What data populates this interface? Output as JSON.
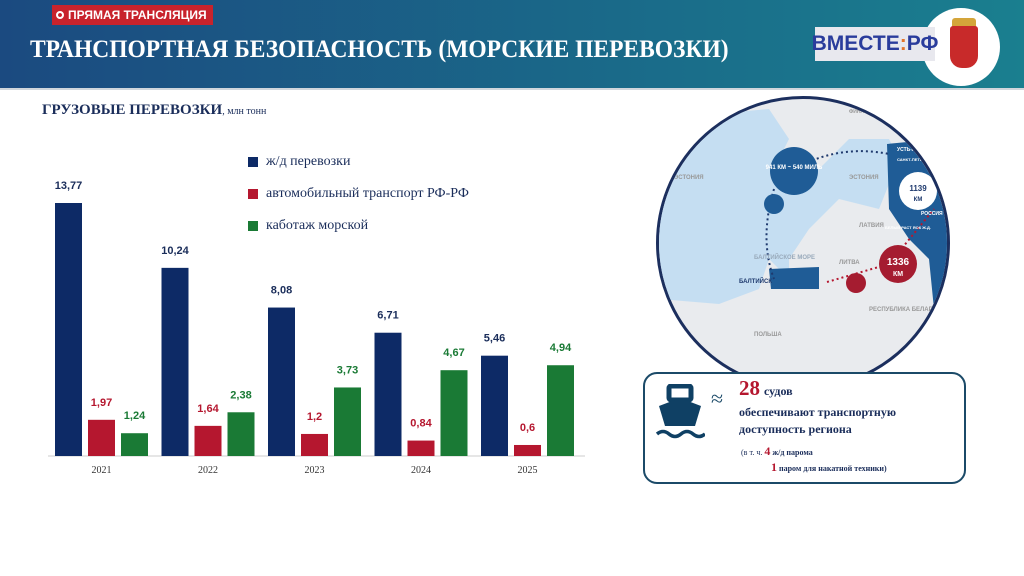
{
  "header": {
    "title": "ТРАНСПОРТНАЯ БЕЗОПАСНОСТЬ (МОРСКИЕ ПЕРЕВОЗКИ)",
    "live_badge": "ПРЯМАЯ ТРАНСЛЯЦИЯ",
    "logo_left": "ВМЕСТЕ",
    "logo_sep": ":",
    "logo_right": "РФ"
  },
  "subtitle": {
    "main": "ГРУЗОВЫЕ ПЕРЕВОЗКИ",
    "unit": ", млн тонн"
  },
  "chart_data": {
    "type": "bar",
    "title": "ГРУЗОВЫЕ ПЕРЕВОЗКИ, млн тонн",
    "categories": [
      "2021",
      "2022",
      "2023",
      "2024",
      "2025"
    ],
    "series": [
      {
        "name": "ж/д перевозки",
        "color": "#0d2a66",
        "values": [
          13.77,
          10.24,
          8.08,
          6.71,
          5.46
        ],
        "labels": [
          "13,77",
          "10,24",
          "8,08",
          "6,71",
          "5,46"
        ]
      },
      {
        "name": "автомобильный транспорт РФ-РФ",
        "color": "#b5172f",
        "values": [
          1.97,
          1.64,
          1.2,
          0.84,
          0.6
        ],
        "labels": [
          "1,97",
          "1,64",
          "1,2",
          "0,84",
          "0,6"
        ]
      },
      {
        "name": "каботаж морской",
        "color": "#1a7a35",
        "values": [
          1.24,
          2.38,
          3.73,
          4.67,
          4.94
        ],
        "labels": [
          "1,24",
          "2,38",
          "3,73",
          "4,67",
          "4,94"
        ]
      }
    ],
    "ylim": [
      0,
      14
    ],
    "legend": "top-right"
  },
  "map": {
    "labels": [
      "ФИНЛЯНДИЯ",
      "ЭСТОНИЯ",
      "ЛАТВИЯ",
      "ЛИТВА",
      "БАЛТИЙСКОЕ МОРЕ",
      "БАЛТИЙСК",
      "ПОЛЬША",
      "РЕСПУБЛИКА БЕЛАРУСЬ",
      "РОССИЯ",
      "УСТЬ-ЛУГА",
      "САНКТ-ПЕТЕРБУРГ",
      "БЕЛЫЙ РАСТ ЯОК Ж.Д."
    ],
    "sea_route": "941 КМ ~ 540 МИЛЬ",
    "rail_north": "1139",
    "rail_north_unit": "КМ",
    "rail_south": "1336",
    "rail_south_unit": "КМ"
  },
  "info": {
    "approx": "≈",
    "count": "28",
    "count_unit": "судов",
    "line1": "обеспечивают транспортную",
    "line2": "доступность региона",
    "note_prefix": "(в т. ч.",
    "n1": "4",
    "n1_text": "ж/д парома",
    "n2": "1",
    "n2_text": "паром для накатной техники)"
  }
}
